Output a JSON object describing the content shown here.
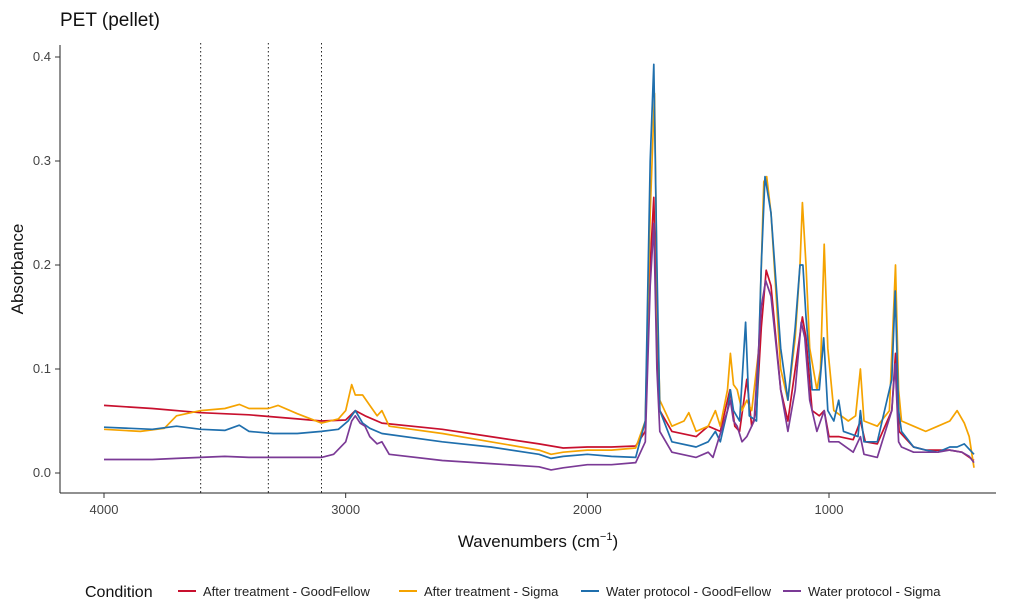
{
  "chart_data": {
    "type": "line",
    "title": "PET (pellet)",
    "xlabel": "Wavenumbers",
    "xlabel_unit": "cm",
    "xlabel_unit_exp": "−1",
    "ylabel": "Absorbance",
    "xlim": [
      4000,
      400
    ],
    "x_reversed": true,
    "ylim": [
      0,
      0.4
    ],
    "x_ticks": [
      4000,
      3000,
      2000,
      1000
    ],
    "y_ticks": [
      0.0,
      0.1,
      0.2,
      0.3,
      0.4
    ],
    "y_tick_labels": [
      "0.0",
      "0.1",
      "0.2",
      "0.3",
      "0.4"
    ],
    "grid": false,
    "legend_position": "bottom",
    "legend_title": "Condition",
    "vertical_reference_lines": [
      3600,
      3320,
      3100
    ],
    "series": [
      {
        "name": "After treatment - GoodFellow",
        "color": "#c8102e",
        "points": [
          [
            4000,
            0.065
          ],
          [
            3800,
            0.062
          ],
          [
            3600,
            0.058
          ],
          [
            3400,
            0.056
          ],
          [
            3200,
            0.052
          ],
          [
            3100,
            0.05
          ],
          [
            3000,
            0.051
          ],
          [
            2960,
            0.06
          ],
          [
            2920,
            0.055
          ],
          [
            2850,
            0.048
          ],
          [
            2600,
            0.042
          ],
          [
            2400,
            0.035
          ],
          [
            2200,
            0.028
          ],
          [
            2100,
            0.024
          ],
          [
            2000,
            0.025
          ],
          [
            1900,
            0.025
          ],
          [
            1800,
            0.026
          ],
          [
            1760,
            0.04
          ],
          [
            1740,
            0.2
          ],
          [
            1725,
            0.265
          ],
          [
            1710,
            0.12
          ],
          [
            1700,
            0.06
          ],
          [
            1650,
            0.04
          ],
          [
            1550,
            0.035
          ],
          [
            1500,
            0.045
          ],
          [
            1450,
            0.04
          ],
          [
            1410,
            0.08
          ],
          [
            1390,
            0.045
          ],
          [
            1370,
            0.04
          ],
          [
            1340,
            0.09
          ],
          [
            1320,
            0.045
          ],
          [
            1300,
            0.06
          ],
          [
            1280,
            0.14
          ],
          [
            1260,
            0.195
          ],
          [
            1240,
            0.18
          ],
          [
            1200,
            0.08
          ],
          [
            1170,
            0.05
          ],
          [
            1140,
            0.1
          ],
          [
            1110,
            0.15
          ],
          [
            1095,
            0.13
          ],
          [
            1070,
            0.06
          ],
          [
            1040,
            0.055
          ],
          [
            1020,
            0.06
          ],
          [
            1000,
            0.035
          ],
          [
            960,
            0.035
          ],
          [
            900,
            0.032
          ],
          [
            870,
            0.05
          ],
          [
            850,
            0.03
          ],
          [
            800,
            0.028
          ],
          [
            740,
            0.06
          ],
          [
            725,
            0.115
          ],
          [
            710,
            0.04
          ],
          [
            650,
            0.025
          ],
          [
            600,
            0.022
          ],
          [
            500,
            0.022
          ],
          [
            450,
            0.02
          ],
          [
            400,
            0.012
          ]
        ]
      },
      {
        "name": "After treatment - Sigma",
        "color": "#f5a300",
        "points": [
          [
            4000,
            0.042
          ],
          [
            3850,
            0.04
          ],
          [
            3750,
            0.043
          ],
          [
            3700,
            0.055
          ],
          [
            3600,
            0.06
          ],
          [
            3500,
            0.062
          ],
          [
            3440,
            0.066
          ],
          [
            3400,
            0.062
          ],
          [
            3320,
            0.062
          ],
          [
            3280,
            0.065
          ],
          [
            3200,
            0.057
          ],
          [
            3100,
            0.048
          ],
          [
            3030,
            0.052
          ],
          [
            3000,
            0.06
          ],
          [
            2975,
            0.085
          ],
          [
            2960,
            0.075
          ],
          [
            2930,
            0.075
          ],
          [
            2900,
            0.065
          ],
          [
            2870,
            0.055
          ],
          [
            2850,
            0.06
          ],
          [
            2820,
            0.045
          ],
          [
            2600,
            0.038
          ],
          [
            2400,
            0.03
          ],
          [
            2200,
            0.022
          ],
          [
            2150,
            0.018
          ],
          [
            2100,
            0.02
          ],
          [
            2000,
            0.022
          ],
          [
            1900,
            0.022
          ],
          [
            1800,
            0.024
          ],
          [
            1760,
            0.05
          ],
          [
            1740,
            0.25
          ],
          [
            1722,
            0.365
          ],
          [
            1710,
            0.15
          ],
          [
            1700,
            0.07
          ],
          [
            1650,
            0.045
          ],
          [
            1600,
            0.05
          ],
          [
            1580,
            0.058
          ],
          [
            1550,
            0.04
          ],
          [
            1500,
            0.045
          ],
          [
            1470,
            0.06
          ],
          [
            1450,
            0.045
          ],
          [
            1420,
            0.08
          ],
          [
            1408,
            0.115
          ],
          [
            1395,
            0.085
          ],
          [
            1380,
            0.08
          ],
          [
            1360,
            0.06
          ],
          [
            1340,
            0.07
          ],
          [
            1320,
            0.06
          ],
          [
            1290,
            0.12
          ],
          [
            1270,
            0.28
          ],
          [
            1258,
            0.285
          ],
          [
            1240,
            0.25
          ],
          [
            1200,
            0.1
          ],
          [
            1170,
            0.07
          ],
          [
            1140,
            0.13
          ],
          [
            1120,
            0.2
          ],
          [
            1110,
            0.26
          ],
          [
            1095,
            0.2
          ],
          [
            1080,
            0.12
          ],
          [
            1050,
            0.08
          ],
          [
            1035,
            0.1
          ],
          [
            1020,
            0.22
          ],
          [
            1005,
            0.12
          ],
          [
            980,
            0.06
          ],
          [
            920,
            0.05
          ],
          [
            890,
            0.055
          ],
          [
            870,
            0.1
          ],
          [
            855,
            0.05
          ],
          [
            800,
            0.045
          ],
          [
            750,
            0.06
          ],
          [
            725,
            0.2
          ],
          [
            712,
            0.08
          ],
          [
            700,
            0.05
          ],
          [
            650,
            0.045
          ],
          [
            600,
            0.04
          ],
          [
            550,
            0.045
          ],
          [
            500,
            0.05
          ],
          [
            470,
            0.06
          ],
          [
            440,
            0.048
          ],
          [
            420,
            0.035
          ],
          [
            400,
            0.005
          ]
        ]
      },
      {
        "name": "Water protocol - GoodFellow",
        "color": "#1f6fad",
        "points": [
          [
            4000,
            0.044
          ],
          [
            3800,
            0.042
          ],
          [
            3700,
            0.045
          ],
          [
            3600,
            0.042
          ],
          [
            3500,
            0.041
          ],
          [
            3440,
            0.046
          ],
          [
            3400,
            0.04
          ],
          [
            3300,
            0.038
          ],
          [
            3200,
            0.038
          ],
          [
            3100,
            0.04
          ],
          [
            3030,
            0.042
          ],
          [
            2990,
            0.05
          ],
          [
            2960,
            0.06
          ],
          [
            2930,
            0.048
          ],
          [
            2900,
            0.043
          ],
          [
            2850,
            0.038
          ],
          [
            2600,
            0.03
          ],
          [
            2400,
            0.025
          ],
          [
            2200,
            0.018
          ],
          [
            2150,
            0.014
          ],
          [
            2100,
            0.016
          ],
          [
            2000,
            0.018
          ],
          [
            1900,
            0.016
          ],
          [
            1800,
            0.015
          ],
          [
            1760,
            0.05
          ],
          [
            1740,
            0.3
          ],
          [
            1725,
            0.393
          ],
          [
            1712,
            0.2
          ],
          [
            1700,
            0.06
          ],
          [
            1650,
            0.03
          ],
          [
            1550,
            0.025
          ],
          [
            1500,
            0.03
          ],
          [
            1470,
            0.04
          ],
          [
            1450,
            0.03
          ],
          [
            1420,
            0.06
          ],
          [
            1408,
            0.08
          ],
          [
            1395,
            0.06
          ],
          [
            1370,
            0.05
          ],
          [
            1345,
            0.145
          ],
          [
            1330,
            0.055
          ],
          [
            1300,
            0.05
          ],
          [
            1280,
            0.2
          ],
          [
            1265,
            0.285
          ],
          [
            1240,
            0.25
          ],
          [
            1200,
            0.12
          ],
          [
            1170,
            0.07
          ],
          [
            1140,
            0.14
          ],
          [
            1120,
            0.2
          ],
          [
            1108,
            0.2
          ],
          [
            1095,
            0.15
          ],
          [
            1070,
            0.08
          ],
          [
            1040,
            0.08
          ],
          [
            1022,
            0.13
          ],
          [
            1005,
            0.06
          ],
          [
            980,
            0.05
          ],
          [
            960,
            0.07
          ],
          [
            940,
            0.04
          ],
          [
            880,
            0.035
          ],
          [
            870,
            0.06
          ],
          [
            855,
            0.03
          ],
          [
            800,
            0.03
          ],
          [
            740,
            0.09
          ],
          [
            726,
            0.175
          ],
          [
            712,
            0.06
          ],
          [
            700,
            0.04
          ],
          [
            650,
            0.025
          ],
          [
            600,
            0.022
          ],
          [
            550,
            0.02
          ],
          [
            500,
            0.025
          ],
          [
            470,
            0.025
          ],
          [
            440,
            0.028
          ],
          [
            400,
            0.018
          ]
        ]
      },
      {
        "name": "Water protocol - Sigma",
        "color": "#7b3a96",
        "points": [
          [
            4000,
            0.013
          ],
          [
            3800,
            0.013
          ],
          [
            3700,
            0.014
          ],
          [
            3600,
            0.015
          ],
          [
            3500,
            0.016
          ],
          [
            3400,
            0.015
          ],
          [
            3300,
            0.015
          ],
          [
            3200,
            0.015
          ],
          [
            3100,
            0.015
          ],
          [
            3050,
            0.018
          ],
          [
            3000,
            0.03
          ],
          [
            2975,
            0.05
          ],
          [
            2960,
            0.055
          ],
          [
            2940,
            0.048
          ],
          [
            2920,
            0.045
          ],
          [
            2900,
            0.035
          ],
          [
            2870,
            0.028
          ],
          [
            2850,
            0.03
          ],
          [
            2820,
            0.018
          ],
          [
            2600,
            0.012
          ],
          [
            2400,
            0.009
          ],
          [
            2200,
            0.006
          ],
          [
            2150,
            0.003
          ],
          [
            2100,
            0.005
          ],
          [
            2000,
            0.008
          ],
          [
            1900,
            0.008
          ],
          [
            1800,
            0.01
          ],
          [
            1760,
            0.03
          ],
          [
            1740,
            0.18
          ],
          [
            1725,
            0.24
          ],
          [
            1712,
            0.1
          ],
          [
            1700,
            0.04
          ],
          [
            1650,
            0.02
          ],
          [
            1550,
            0.015
          ],
          [
            1500,
            0.02
          ],
          [
            1480,
            0.015
          ],
          [
            1460,
            0.03
          ],
          [
            1420,
            0.06
          ],
          [
            1408,
            0.07
          ],
          [
            1395,
            0.05
          ],
          [
            1380,
            0.045
          ],
          [
            1360,
            0.03
          ],
          [
            1340,
            0.035
          ],
          [
            1310,
            0.05
          ],
          [
            1280,
            0.16
          ],
          [
            1262,
            0.185
          ],
          [
            1240,
            0.17
          ],
          [
            1200,
            0.08
          ],
          [
            1170,
            0.04
          ],
          [
            1140,
            0.08
          ],
          [
            1115,
            0.145
          ],
          [
            1100,
            0.13
          ],
          [
            1080,
            0.07
          ],
          [
            1050,
            0.04
          ],
          [
            1020,
            0.06
          ],
          [
            1000,
            0.03
          ],
          [
            960,
            0.03
          ],
          [
            900,
            0.02
          ],
          [
            870,
            0.035
          ],
          [
            855,
            0.018
          ],
          [
            800,
            0.015
          ],
          [
            740,
            0.06
          ],
          [
            726,
            0.105
          ],
          [
            712,
            0.03
          ],
          [
            700,
            0.025
          ],
          [
            650,
            0.02
          ],
          [
            600,
            0.02
          ],
          [
            550,
            0.02
          ],
          [
            500,
            0.022
          ],
          [
            450,
            0.02
          ],
          [
            420,
            0.016
          ],
          [
            400,
            0.01
          ]
        ]
      }
    ]
  }
}
